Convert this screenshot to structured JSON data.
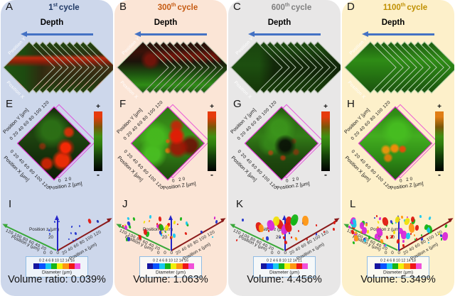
{
  "shared": {
    "depth_label": "Depth",
    "arrow_color": "#4472c4",
    "stack_y_label": "Position Y",
    "stack_x_label": "Position X",
    "axes2": {
      "y_label": "Position Y [μm]",
      "x_label": "Position X [μm]",
      "z_label": "Position Z [μm]",
      "xy_ticks": "0 20 40 60 80 100 120",
      "z_ticks": "0 20"
    },
    "colorbar": {
      "plus": "+",
      "minus": "-"
    },
    "axes3": {
      "y_label": "Position y (μm)",
      "x_label": "Position x (μm)",
      "z_label": "Position z (μm)",
      "y_ticks": "120 100 80 60 40 20",
      "x_ticks": "20 40 60 80 100 120",
      "z_tick": "20",
      "origin_ticks": "0 0 0",
      "y_color": "#3aa83a",
      "x_color": "#8b1a1a",
      "z_color": "#2525c8"
    },
    "diameter_label": "Diameter (μm)",
    "diameter_colors": [
      "#1515a0",
      "#0a52ff",
      "#18c8f0",
      "#16b416",
      "#f0f00a",
      "#ff9712",
      "#ef1616",
      "#f050d8"
    ]
  },
  "panels": [
    {
      "letter_top": "A",
      "letter_mid": "E",
      "letter_bottom": "I",
      "cycle_number": "1",
      "cycle_ordinal": "st",
      "cycle_word": "cycle",
      "title_color": "#1f3864",
      "bg_color": "#cdd7eb",
      "colorbar_top": "#e63a0c",
      "diameter_ticks": "0 2 4 6 8 10 12 14 16",
      "volume_text": "Volume ratio: 0.039%",
      "scatter_groups": [
        {
          "count": 9,
          "min": 2,
          "max": 4,
          "x0": 60,
          "x1": 142,
          "y0": 10,
          "y1": 34,
          "palette": [
            "#2335cc",
            "#2f42d8",
            "#1b2cb0"
          ]
        },
        {
          "count": 3,
          "min": 2,
          "max": 3,
          "x0": 90,
          "x1": 120,
          "y0": 36,
          "y1": 44,
          "palette": [
            "#2335cc"
          ]
        },
        {
          "count": 1,
          "min": 5,
          "max": 6,
          "x0": 118,
          "x1": 124,
          "y0": 12,
          "y1": 16,
          "palette": [
            "#e01810"
          ]
        }
      ]
    },
    {
      "letter_top": "B",
      "letter_mid": "F",
      "letter_bottom": "J",
      "cycle_number": "300",
      "cycle_ordinal": "th",
      "cycle_word": "cycle",
      "title_color": "#c55a11",
      "bg_color": "#fbe5d6",
      "colorbar_top": "#e63a0c",
      "diameter_ticks": "0 2 4 6 8 10 12 14 16",
      "volume_text": "Volume: 1.063%",
      "scatter_groups": [
        {
          "count": 40,
          "min": 2,
          "max": 6,
          "x0": 8,
          "x1": 146,
          "y0": 6,
          "y1": 40,
          "palette": [
            "#2335cc",
            "#e01810",
            "#18c8f0",
            "#f0e00a",
            "#16b416",
            "#d828d8",
            "#2335cc",
            "#e01810",
            "#ff9712"
          ]
        },
        {
          "count": 5,
          "min": 6,
          "max": 9,
          "x0": 24,
          "x1": 70,
          "y0": 16,
          "y1": 30,
          "palette": [
            "#18c8f0",
            "#f0e00a",
            "#16b416",
            "#e01810"
          ]
        }
      ]
    },
    {
      "letter_top": "C",
      "letter_mid": "G",
      "letter_bottom": "K",
      "cycle_number": "600",
      "cycle_ordinal": "th",
      "cycle_word": "cycle",
      "title_color": "#7f7f7f",
      "bg_color": "#e8e7e7",
      "colorbar_top": "#e63a0c",
      "diameter_ticks": "0 2 4 6 8 10 12 14 21",
      "volume_text": "Volume: 4.456%",
      "scatter_groups": [
        {
          "count": 24,
          "min": 2,
          "max": 5,
          "x0": 8,
          "x1": 148,
          "y0": 10,
          "y1": 44,
          "palette": [
            "#2335cc",
            "#e01810",
            "#ff9712",
            "#2335cc",
            "#e01810"
          ]
        },
        {
          "count": 11,
          "min": 8,
          "max": 14,
          "x0": 34,
          "x1": 104,
          "y0": 6,
          "y1": 20,
          "palette": [
            "#d828d8",
            "#ff9712",
            "#16b416",
            "#f0e00a",
            "#d828d8",
            "#e01810"
          ]
        }
      ]
    },
    {
      "letter_top": "D",
      "letter_mid": "H",
      "letter_bottom": "L",
      "cycle_number": "1100",
      "cycle_ordinal": "th",
      "cycle_word": "cycle",
      "title_color": "#bf8f00",
      "bg_color": "#fdf0ca",
      "colorbar_top": "#e07d14",
      "diameter_ticks": "0 2 4 6 8 10 12 14 18",
      "volume_text": "Volume: 5.349%",
      "scatter_groups": [
        {
          "count": 55,
          "min": 2,
          "max": 5,
          "x0": 6,
          "x1": 148,
          "y0": 4,
          "y1": 48,
          "palette": [
            "#2335cc",
            "#e01810",
            "#16b416",
            "#f0e00a",
            "#18c8f0",
            "#d828d8",
            "#ff9712"
          ]
        },
        {
          "count": 24,
          "min": 6,
          "max": 12,
          "x0": 8,
          "x1": 146,
          "y0": 8,
          "y1": 36,
          "palette": [
            "#d828d8",
            "#16b416",
            "#f0e00a",
            "#ff9712",
            "#18c8f0",
            "#d828d8",
            "#e01810"
          ]
        }
      ]
    }
  ]
}
